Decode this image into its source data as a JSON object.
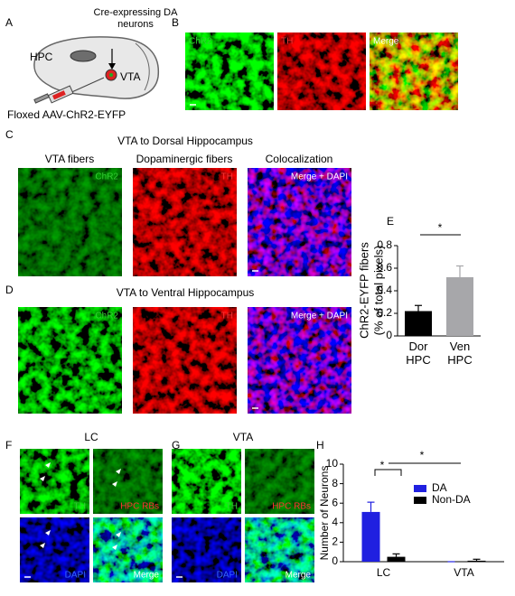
{
  "panel_letters": [
    "A",
    "B",
    "C",
    "D",
    "E",
    "F",
    "G",
    "H"
  ],
  "panel_a": {
    "hpc": "HPC",
    "cre": "Cre-expressing DA neurons",
    "vta": "VTA",
    "virus": "Floxed AAV-ChR2-EYFP"
  },
  "panel_b": {
    "labels": [
      "ChR2",
      "TH",
      "Merge"
    ]
  },
  "panel_c": {
    "title": "VTA to Dorsal Hippocampus",
    "columns": [
      "VTA fibers",
      "Dopaminergic fibers",
      "Colocalization"
    ],
    "labels": [
      "ChR2",
      "TH",
      "Merge + DAPI"
    ]
  },
  "panel_d": {
    "title": "VTA to Ventral Hippocampus",
    "labels": [
      "ChR2",
      "TH",
      "Merge + DAPI"
    ]
  },
  "panel_f": {
    "title": "LC",
    "labels": [
      "TH",
      "HPC RBs",
      "DAPI",
      "Merge"
    ]
  },
  "panel_g": {
    "title": "VTA",
    "labels": [
      "TH",
      "HPC RBs",
      "DAPI",
      "Merge"
    ]
  },
  "chart_data": [
    {
      "type": "bar",
      "y_label": [
        "ChR2-EYFP fibers",
        "(% of total pixels)"
      ],
      "categories": [
        "Dor HPC",
        "Ven HPC"
      ],
      "values": [
        0.22,
        0.52
      ],
      "errors": [
        0.05,
        0.1
      ],
      "colors": [
        "#000000",
        "#a7a7aa"
      ],
      "ylim": [
        0,
        0.8
      ],
      "yticks": [
        0,
        0.2,
        0.4,
        0.6,
        0.8
      ],
      "annotations": [
        "*"
      ]
    },
    {
      "type": "grouped_bar",
      "y_label": "Number of Neurons",
      "categories": [
        "LC",
        "VTA"
      ],
      "series": [
        {
          "name": "DA",
          "color": "#2020e0",
          "values": [
            5.1,
            0
          ],
          "errors": [
            1.0,
            0
          ]
        },
        {
          "name": "Non-DA",
          "color": "#000000",
          "values": [
            0.5,
            0.1
          ],
          "errors": [
            0.3,
            0.15
          ]
        }
      ],
      "ylim": [
        0,
        10
      ],
      "yticks": [
        0,
        2,
        4,
        6,
        8,
        10
      ],
      "legend": "upper right",
      "annotations": [
        "*",
        "*"
      ]
    }
  ]
}
